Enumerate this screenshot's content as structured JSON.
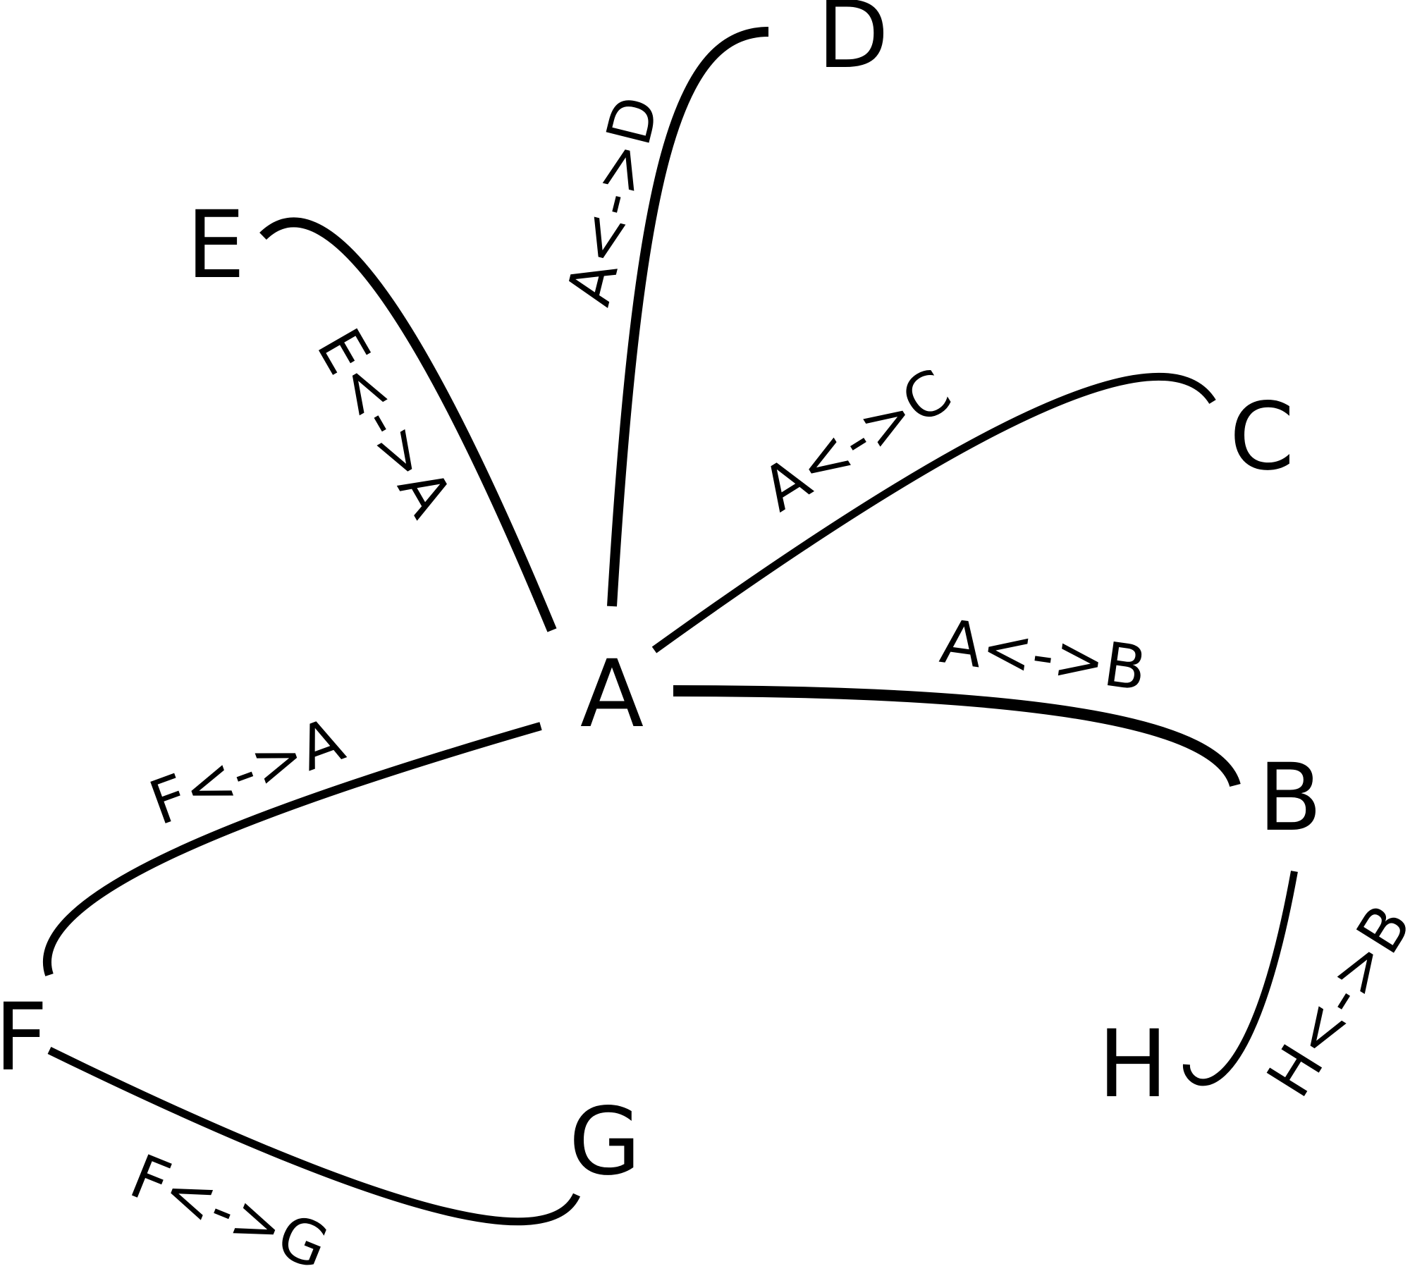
{
  "diagram": {
    "type": "undirected-graph",
    "colors": {
      "background": "#ffffff",
      "stroke": "#000000",
      "text": "#000000"
    },
    "nodes": [
      {
        "id": "A",
        "label": "A"
      },
      {
        "id": "B",
        "label": "B"
      },
      {
        "id": "C",
        "label": "C"
      },
      {
        "id": "D",
        "label": "D"
      },
      {
        "id": "E",
        "label": "E"
      },
      {
        "id": "F",
        "label": "F"
      },
      {
        "id": "G",
        "label": "G"
      },
      {
        "id": "H",
        "label": "H"
      }
    ],
    "edges": [
      {
        "id": "A-B",
        "from": "A",
        "to": "B",
        "label": "A<->B"
      },
      {
        "id": "A-C",
        "from": "A",
        "to": "C",
        "label": "A<->C"
      },
      {
        "id": "A-D",
        "from": "A",
        "to": "D",
        "label": "A<->D"
      },
      {
        "id": "E-A",
        "from": "E",
        "to": "A",
        "label": "E<->A"
      },
      {
        "id": "F-A",
        "from": "F",
        "to": "A",
        "label": "F<->A"
      },
      {
        "id": "F-G",
        "from": "F",
        "to": "G",
        "label": "F<->G"
      },
      {
        "id": "H-B",
        "from": "H",
        "to": "B",
        "label": "H<->B"
      }
    ]
  }
}
